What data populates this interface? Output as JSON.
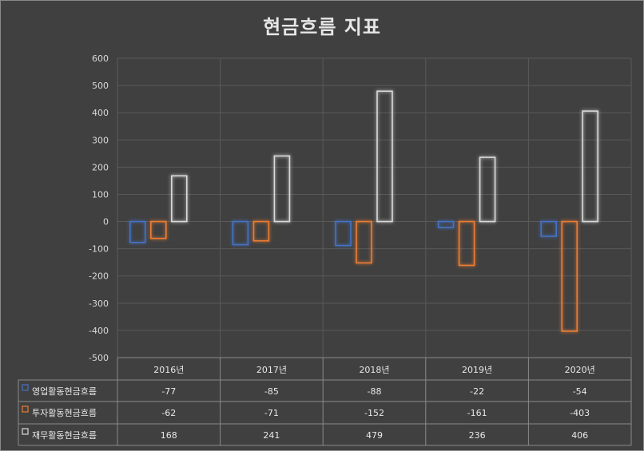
{
  "chart_data": {
    "type": "bar",
    "title": "현금흐름 지표",
    "categories": [
      "2016년",
      "2017년",
      "2018년",
      "2019년",
      "2020년"
    ],
    "series": [
      {
        "name": "영업활동현금흐름",
        "values": [
          -77,
          -85,
          -88,
          -22,
          -54
        ],
        "color": "#4472c4"
      },
      {
        "name": "투자활동현금흐름",
        "values": [
          -62,
          -71,
          -152,
          -161,
          -403
        ],
        "color": "#ed7d31"
      },
      {
        "name": "재무활동현금흐름",
        "values": [
          168,
          241,
          479,
          236,
          406
        ],
        "color": "#d9d9d9"
      }
    ],
    "ylim": [
      -500,
      600
    ],
    "yticks": [
      600,
      500,
      400,
      300,
      200,
      100,
      0,
      -100,
      -200,
      -300,
      -400,
      -500
    ],
    "grid": true,
    "legend": "data-table",
    "style": "outlined-glow-bars"
  }
}
